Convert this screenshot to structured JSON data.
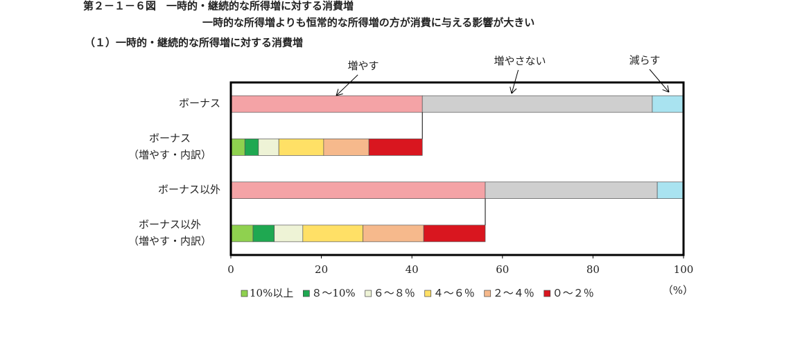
{
  "chart_data": {
    "type": "stacked-barh",
    "title": "第２－１－６図　一時的・継続的な所得増に対する消費増",
    "subtitle": "一時的な所得増よりも恒常的な所得増の方が消費に与える影響が大きい",
    "panel_title": "（１）一時的・継続的な所得増に対する消費増",
    "x_unit": "（%）",
    "categories": [
      [
        "ボーナス"
      ],
      [
        "ボーナス",
        "（増やす・内訳）"
      ],
      [
        "ボーナス以外"
      ],
      [
        "ボーナス以外",
        "（増やす・内訳）"
      ]
    ],
    "xlim": [
      0,
      100
    ],
    "xticks": [
      0,
      20,
      40,
      60,
      80,
      100
    ],
    "series": [
      {
        "name": "増やす",
        "color": "#f4a3a6",
        "annotated": true,
        "values": [
          42.3,
          null,
          56.2,
          null
        ]
      },
      {
        "name": "増やさない",
        "color": "#cfcfcf",
        "annotated": true,
        "values": [
          50.8,
          null,
          38.0,
          null
        ]
      },
      {
        "name": "減らす",
        "color": "#a9e3f0",
        "annotated": true,
        "values": [
          6.9,
          null,
          5.8,
          null
        ]
      },
      {
        "name": "10%以上",
        "color": "#8fd14f",
        "values": [
          null,
          3.1,
          null,
          4.9
        ]
      },
      {
        "name": "８～10%",
        "color": "#1fa851",
        "values": [
          null,
          3.0,
          null,
          4.7
        ]
      },
      {
        "name": "６～８％",
        "color": "#eef3d6",
        "values": [
          null,
          4.5,
          null,
          6.3
        ]
      },
      {
        "name": "４～６％",
        "color": "#ffe066",
        "values": [
          null,
          9.9,
          null,
          13.3
        ]
      },
      {
        "name": "２～４％",
        "color": "#f6b98c",
        "values": [
          null,
          10.0,
          null,
          13.4
        ]
      },
      {
        "name": "０～２％",
        "color": "#d9161f",
        "values": [
          null,
          11.8,
          null,
          13.6
        ]
      }
    ]
  }
}
